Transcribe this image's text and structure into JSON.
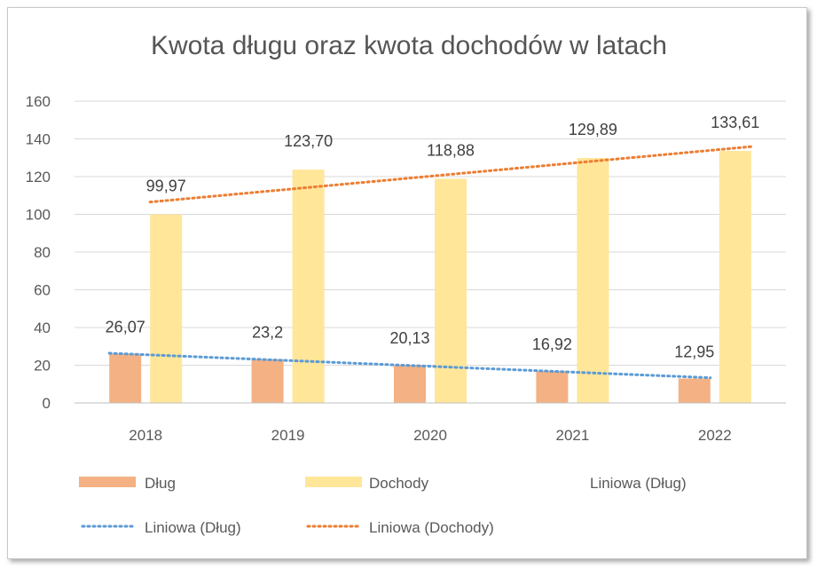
{
  "chart_data": {
    "type": "bar",
    "title": "Kwota długu oraz kwota dochodów w latach",
    "categories": [
      "2018",
      "2019",
      "2020",
      "2021",
      "2022"
    ],
    "series": [
      {
        "name": "Dług",
        "values": [
          26.07,
          23.2,
          20.13,
          16.92,
          12.95
        ],
        "labels": [
          "26,07",
          "23,2",
          "20,13",
          "16,92",
          "12,95"
        ],
        "color": "#f4b183"
      },
      {
        "name": "Dochody",
        "values": [
          99.97,
          123.7,
          118.88,
          129.89,
          133.61
        ],
        "labels": [
          "99,97",
          "123,70",
          "118,88",
          "129,89",
          "133,61"
        ],
        "color": "#ffe699"
      }
    ],
    "trendlines": [
      {
        "name": "Liniowa (Dług)",
        "series": "Dług",
        "type": "linear",
        "style": "dotted",
        "color": "#5b9bd5"
      },
      {
        "name": "Liniowa (Dochody)",
        "series": "Dochody",
        "type": "linear",
        "style": "dotted",
        "color": "#ed7d31"
      }
    ],
    "ylim": [
      0,
      160
    ],
    "yticks": [
      0,
      20,
      40,
      60,
      80,
      100,
      120,
      140,
      160
    ],
    "grid": true,
    "legend": {
      "position": "bottom",
      "entries": [
        "Dług",
        "Dochody",
        "Liniowa (Dług)",
        "Liniowa (Dług)",
        "Liniowa (Dochody)"
      ]
    }
  }
}
